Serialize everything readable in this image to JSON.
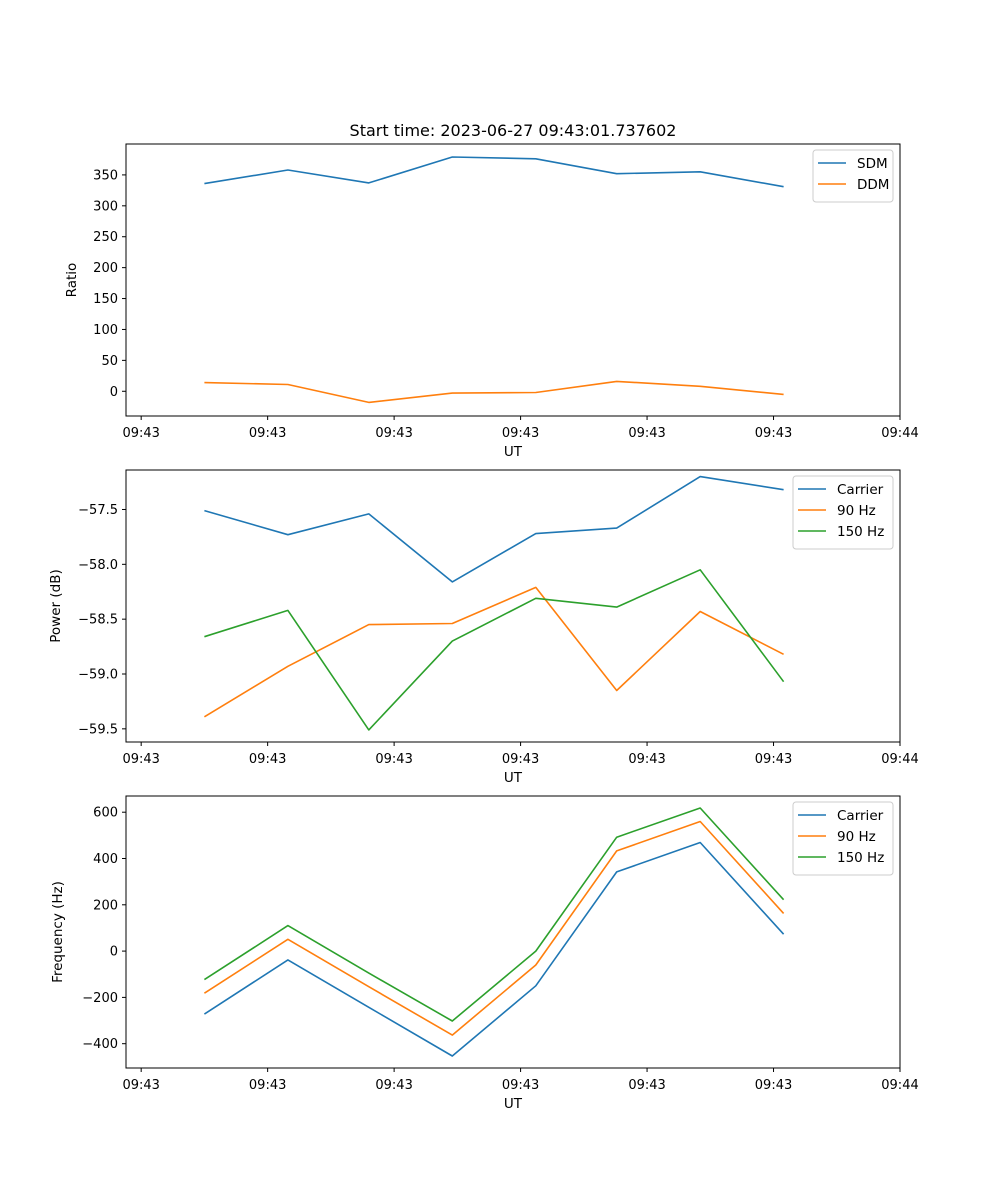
{
  "title": "Start time: 2023-06-27 09:43:01.737602",
  "colors": {
    "blue": "#1f77b4",
    "orange": "#ff7f0e",
    "green": "#2ca02c"
  },
  "chart_data": [
    {
      "type": "line",
      "title": "Start time: 2023-06-27 09:43:01.737602",
      "xlabel": "UT",
      "ylabel": "Ratio",
      "x_tick_labels": [
        "09:43",
        "09:43",
        "09:43",
        "09:43",
        "09:43",
        "09:43",
        "09:44"
      ],
      "x_tick_values": [
        0.2,
        0.7,
        1.2,
        1.7,
        2.2,
        2.7,
        3.2
      ],
      "xlim": [
        0.14,
        3.2
      ],
      "ylim": [
        -40,
        400
      ],
      "y_ticks": [
        0,
        50,
        100,
        150,
        200,
        250,
        300,
        350
      ],
      "y_tick_labels": [
        "0",
        "50",
        "100",
        "150",
        "200",
        "250",
        "300",
        "350"
      ],
      "x": [
        0.45,
        0.78,
        1.1,
        1.43,
        1.76,
        2.08,
        2.41,
        2.74
      ],
      "series": [
        {
          "name": "SDM",
          "color": "#1f77b4",
          "values": [
            336,
            358,
            337,
            379,
            376,
            352,
            355,
            331
          ]
        },
        {
          "name": "DDM",
          "color": "#ff7f0e",
          "values": [
            14,
            11,
            -18,
            -3,
            -2,
            16,
            8,
            -5
          ]
        }
      ],
      "legend": "upper right"
    },
    {
      "type": "line",
      "xlabel": "UT",
      "ylabel": "Power (dB)",
      "x_tick_labels": [
        "09:43",
        "09:43",
        "09:43",
        "09:43",
        "09:43",
        "09:43",
        "09:44"
      ],
      "x_tick_values": [
        0.2,
        0.7,
        1.2,
        1.7,
        2.2,
        2.7,
        3.2
      ],
      "xlim": [
        0.14,
        3.2
      ],
      "ylim": [
        -59.62,
        -57.14
      ],
      "y_ticks": [
        -59.5,
        -59.0,
        -58.5,
        -58.0,
        -57.5
      ],
      "y_tick_labels": [
        "−59.5",
        "−59.0",
        "−58.5",
        "−58.0",
        "−57.5"
      ],
      "x": [
        0.45,
        0.78,
        1.1,
        1.43,
        1.76,
        2.08,
        2.41,
        2.74
      ],
      "series": [
        {
          "name": "Carrier",
          "color": "#1f77b4",
          "values": [
            -57.51,
            -57.73,
            -57.54,
            -58.16,
            -57.72,
            -57.67,
            -57.2,
            -57.32
          ]
        },
        {
          "name": "90 Hz",
          "color": "#ff7f0e",
          "values": [
            -59.39,
            -58.93,
            -58.55,
            -58.54,
            -58.21,
            -59.15,
            -58.43,
            -58.82
          ]
        },
        {
          "name": "150 Hz",
          "color": "#2ca02c",
          "values": [
            -58.66,
            -58.42,
            -59.51,
            -58.7,
            -58.31,
            -58.39,
            -58.05,
            -59.07
          ]
        }
      ],
      "legend": "upper right"
    },
    {
      "type": "line",
      "xlabel": "UT",
      "ylabel": "Frequency (Hz)",
      "x_tick_labels": [
        "09:43",
        "09:43",
        "09:43",
        "09:43",
        "09:43",
        "09:43",
        "09:44"
      ],
      "x_tick_values": [
        0.2,
        0.7,
        1.2,
        1.7,
        2.2,
        2.7,
        3.2
      ],
      "xlim": [
        0.14,
        3.2
      ],
      "ylim": [
        -505,
        670
      ],
      "y_ticks": [
        -400,
        -200,
        0,
        200,
        400,
        600
      ],
      "y_tick_labels": [
        "−400",
        "−200",
        "0",
        "200",
        "400",
        "600"
      ],
      "x": [
        0.45,
        0.78,
        1.1,
        1.43,
        1.76,
        2.08,
        2.41,
        2.74
      ],
      "series": [
        {
          "name": "Carrier",
          "color": "#1f77b4",
          "values": [
            -272,
            -38,
            -243,
            -453,
            -150,
            342,
            469,
            73
          ]
        },
        {
          "name": "90 Hz",
          "color": "#ff7f0e",
          "values": [
            -182,
            51,
            -154,
            -363,
            -60,
            433,
            560,
            163
          ]
        },
        {
          "name": "150 Hz",
          "color": "#2ca02c",
          "values": [
            -123,
            110,
            -95,
            -302,
            0,
            492,
            618,
            222
          ]
        }
      ],
      "legend": "upper right"
    }
  ]
}
